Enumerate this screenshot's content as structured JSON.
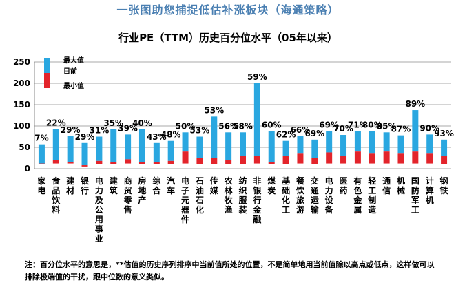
{
  "header": {
    "banner": "一张图助您捕捉低估补涨板块（海通策略）"
  },
  "chart_data": {
    "type": "bar",
    "title": "行业PE（TTM）历史百分位水平（05年以来）",
    "ylim": [
      0,
      250
    ],
    "yticks": [
      0,
      50,
      100,
      150,
      200,
      250
    ],
    "grid": true,
    "legend": {
      "placement": "top-left",
      "entries": [
        "最大值",
        "目前",
        "最小值"
      ]
    },
    "colors": {
      "range": "#2aa7e0",
      "min": "#e3242b"
    },
    "categories": [
      "家电",
      "食品饮料",
      "建材",
      "银行",
      "电力及公用事业",
      "建筑",
      "商贸零售",
      "房地产",
      "综合",
      "汽车",
      "电子元器件",
      "石油石化",
      "传媒",
      "农林牧渔",
      "纺织服装",
      "非银行金融",
      "煤炭",
      "基础化工",
      "餐饮旅游",
      "交通运输",
      "电力设备",
      "医药",
      "有色金属",
      "轻工制造",
      "通信",
      "机械",
      "国防军工",
      "计算机",
      "钢铁"
    ],
    "series": [
      {
        "key": "max",
        "values": [
          57,
          93,
          76,
          60,
          75,
          92,
          80,
          92,
          60,
          65,
          85,
          75,
          122,
          85,
          85,
          200,
          88,
          65,
          76,
          68,
          88,
          79,
          88,
          88,
          85,
          78,
          137,
          80,
          68
        ]
      },
      {
        "key": "min",
        "values": [
          12,
          20,
          15,
          8,
          18,
          15,
          22,
          15,
          15,
          18,
          40,
          25,
          25,
          20,
          30,
          30,
          15,
          30,
          35,
          25,
          38,
          30,
          40,
          35,
          40,
          35,
          40,
          35,
          30
        ]
      },
      {
        "key": "min_floor",
        "values": [
          10,
          12,
          12,
          5,
          10,
          10,
          12,
          10,
          10,
          10,
          12,
          10,
          10,
          10,
          10,
          12,
          10,
          10,
          12,
          10,
          12,
          12,
          12,
          12,
          12,
          12,
          12,
          12,
          10
        ]
      }
    ],
    "percentiles": [
      "7%",
      "22%",
      "29%",
      "29%",
      "31%",
      "35%",
      "39%",
      "40%",
      "43%",
      "48%",
      "50%",
      "53%",
      "53%",
      "56%",
      "58%",
      "59%",
      "60%",
      "62%",
      "66%",
      "69%",
      "69%",
      "70%",
      "71%",
      "80%",
      "85%",
      "87%",
      "89%",
      "90%",
      "93%"
    ]
  },
  "footnote": {
    "text": "注：百分位水平的意思是，**估值的历史序列排序中当前值所处的位置，不是简单地用当前值除以高点或低点，这样做可以排除极端值的干扰，跟中位数的意义类似。"
  }
}
